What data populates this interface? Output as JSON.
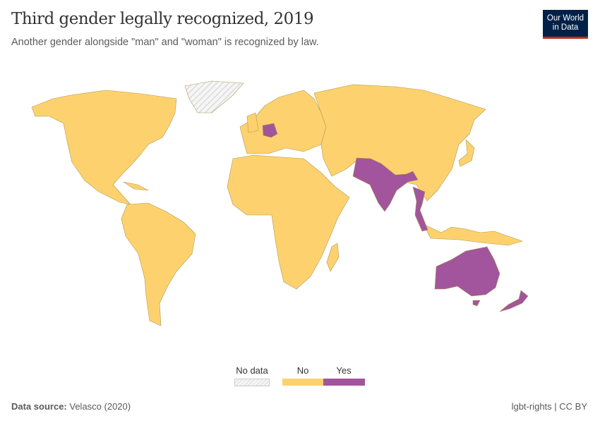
{
  "header": {
    "title": "Third gender legally recognized, 2019",
    "subtitle": "Another gender alongside \"man\" and \"woman\" is recognized by law."
  },
  "logo": {
    "line1": "Our World",
    "line2": "in Data"
  },
  "legend": {
    "no_data": {
      "label": "No data"
    },
    "categories": [
      {
        "label": "No",
        "color": "#fdd26e"
      },
      {
        "label": "Yes",
        "color": "#a2559c"
      }
    ]
  },
  "map": {
    "yes_countries": [
      "Germany",
      "Pakistan",
      "India",
      "Nepal",
      "Bangladesh",
      "Thailand",
      "Australia",
      "New Zealand"
    ],
    "no_data_regions": [
      "Greenland"
    ]
  },
  "footer": {
    "source_label": "Data source:",
    "source": "Velasco (2020)",
    "license": "lgbt-rights | CC BY"
  }
}
